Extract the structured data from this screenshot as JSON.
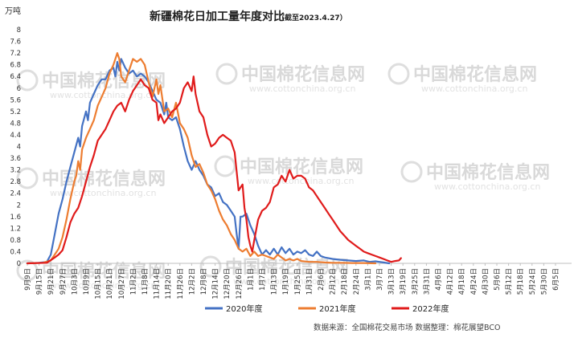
{
  "chart_data": {
    "type": "line",
    "title": "新疆棉花日加工量年度对比",
    "subtitle": "（截至2023.4.27）",
    "ylabel": "万吨",
    "ylim": [
      0,
      8
    ],
    "yticks": [
      "0",
      "0.4",
      "0.8",
      "1.2",
      "1.6",
      "2",
      "2.4",
      "2.8",
      "3.2",
      "3.6",
      "4",
      "4.4",
      "4.8",
      "5.2",
      "5.6",
      "6",
      "6.4",
      "6.8",
      "7.2",
      "7.6",
      "8"
    ],
    "x_tick_labels": [
      "9月9日",
      "9月15日",
      "9月21日",
      "9月27日",
      "10月3日",
      "10月9日",
      "10月15日",
      "10月21日",
      "10月27日",
      "11月2日",
      "11月8日",
      "11月14日",
      "11月20日",
      "11月26日",
      "12月2日",
      "12月8日",
      "12月14日",
      "12月20日",
      "12月26日",
      "1月1日",
      "1月7日",
      "1月13日",
      "1月19日",
      "1月25日",
      "1月31日",
      "2月6日",
      "2月12日",
      "2月18日",
      "2月24日",
      "3月1日",
      "3月7日",
      "3月13日",
      "3月19日",
      "3月25日",
      "3月31日",
      "4月6日",
      "4月12日",
      "4月18日",
      "4月24日",
      "4月30日",
      "5月6日",
      "5月12日",
      "5月18日",
      "5月24日",
      "5月30日",
      "6月5日"
    ],
    "x_start_label": "9月9日",
    "x_days_per_tick": 6,
    "grid": false,
    "legend_position": "bottom",
    "series": [
      {
        "name": "2020年度",
        "color": "#4472c4",
        "points": [
          [
            0,
            0
          ],
          [
            6,
            0.02
          ],
          [
            10,
            0.05
          ],
          [
            12,
            0.3
          ],
          [
            14,
            1.0
          ],
          [
            16,
            1.7
          ],
          [
            18,
            2.2
          ],
          [
            20,
            2.8
          ],
          [
            22,
            3.3
          ],
          [
            24,
            3.8
          ],
          [
            26,
            4.3
          ],
          [
            27,
            4.0
          ],
          [
            28,
            4.7
          ],
          [
            30,
            5.2
          ],
          [
            31,
            4.9
          ],
          [
            32,
            5.5
          ],
          [
            34,
            5.8
          ],
          [
            36,
            6.1
          ],
          [
            38,
            6.3
          ],
          [
            40,
            6.3
          ],
          [
            42,
            6.6
          ],
          [
            44,
            6.7
          ],
          [
            45,
            6.4
          ],
          [
            46,
            6.9
          ],
          [
            47,
            6.6
          ],
          [
            48,
            7.0
          ],
          [
            50,
            6.7
          ],
          [
            52,
            6.5
          ],
          [
            54,
            6.6
          ],
          [
            56,
            6.4
          ],
          [
            58,
            6.5
          ],
          [
            60,
            6.4
          ],
          [
            62,
            6.2
          ],
          [
            64,
            5.9
          ],
          [
            66,
            5.6
          ],
          [
            68,
            5.5
          ],
          [
            70,
            5.1
          ],
          [
            71,
            5.5
          ],
          [
            72,
            5.0
          ],
          [
            74,
            4.9
          ],
          [
            76,
            5.0
          ],
          [
            78,
            4.6
          ],
          [
            80,
            4.0
          ],
          [
            82,
            3.5
          ],
          [
            84,
            3.2
          ],
          [
            86,
            3.5
          ],
          [
            88,
            3.2
          ],
          [
            90,
            3.0
          ],
          [
            92,
            2.7
          ],
          [
            94,
            2.6
          ],
          [
            96,
            2.3
          ],
          [
            98,
            2.4
          ],
          [
            100,
            2.1
          ],
          [
            102,
            2.0
          ],
          [
            104,
            1.8
          ],
          [
            106,
            1.6
          ],
          [
            107,
            1.0
          ],
          [
            108,
            0.5
          ],
          [
            109,
            1.6
          ],
          [
            110,
            1.6
          ],
          [
            112,
            1.7
          ],
          [
            114,
            1.3
          ],
          [
            116,
            1.0
          ],
          [
            118,
            0.6
          ],
          [
            120,
            0.3
          ],
          [
            122,
            0.45
          ],
          [
            124,
            0.3
          ],
          [
            126,
            0.5
          ],
          [
            128,
            0.3
          ],
          [
            130,
            0.55
          ],
          [
            132,
            0.35
          ],
          [
            134,
            0.5
          ],
          [
            136,
            0.3
          ],
          [
            138,
            0.4
          ],
          [
            140,
            0.35
          ],
          [
            142,
            0.45
          ],
          [
            144,
            0.3
          ],
          [
            146,
            0.25
          ],
          [
            148,
            0.4
          ],
          [
            150,
            0.25
          ],
          [
            152,
            0.2
          ],
          [
            156,
            0.15
          ],
          [
            160,
            0.12
          ],
          [
            164,
            0.1
          ],
          [
            168,
            0.08
          ],
          [
            172,
            0.1
          ],
          [
            175,
            0.05
          ],
          [
            178,
            0.07
          ],
          [
            180,
            0.05
          ],
          [
            182,
            0.03
          ],
          [
            185,
            0.0
          ]
        ]
      },
      {
        "name": "2021年度",
        "color": "#ed7d31",
        "points": [
          [
            0,
            0
          ],
          [
            8,
            0.02
          ],
          [
            12,
            0.1
          ],
          [
            14,
            0.3
          ],
          [
            16,
            0.5
          ],
          [
            18,
            0.9
          ],
          [
            20,
            1.5
          ],
          [
            22,
            2.2
          ],
          [
            24,
            2.8
          ],
          [
            25,
            3.0
          ],
          [
            26,
            3.5
          ],
          [
            27,
            3.2
          ],
          [
            28,
            3.9
          ],
          [
            30,
            4.3
          ],
          [
            32,
            4.6
          ],
          [
            34,
            4.9
          ],
          [
            36,
            5.4
          ],
          [
            38,
            5.7
          ],
          [
            40,
            6.0
          ],
          [
            42,
            6.5
          ],
          [
            44,
            6.8
          ],
          [
            46,
            7.2
          ],
          [
            47,
            7.0
          ],
          [
            48,
            6.4
          ],
          [
            50,
            6.2
          ],
          [
            52,
            6.6
          ],
          [
            54,
            7.0
          ],
          [
            56,
            6.9
          ],
          [
            58,
            7.0
          ],
          [
            60,
            6.8
          ],
          [
            62,
            6.2
          ],
          [
            64,
            5.7
          ],
          [
            66,
            6.3
          ],
          [
            67,
            5.8
          ],
          [
            68,
            6.1
          ],
          [
            70,
            5.2
          ],
          [
            72,
            5.3
          ],
          [
            74,
            5.0
          ],
          [
            76,
            5.5
          ],
          [
            78,
            4.8
          ],
          [
            80,
            4.6
          ],
          [
            82,
            4.3
          ],
          [
            84,
            3.7
          ],
          [
            86,
            3.3
          ],
          [
            88,
            3.4
          ],
          [
            90,
            3.1
          ],
          [
            92,
            2.7
          ],
          [
            94,
            2.5
          ],
          [
            96,
            2.2
          ],
          [
            98,
            1.8
          ],
          [
            100,
            1.5
          ],
          [
            102,
            1.3
          ],
          [
            104,
            1.0
          ],
          [
            106,
            0.8
          ],
          [
            108,
            0.5
          ],
          [
            110,
            0.4
          ],
          [
            112,
            0.5
          ],
          [
            114,
            0.25
          ],
          [
            116,
            0.4
          ],
          [
            118,
            0.25
          ],
          [
            120,
            0.3
          ],
          [
            122,
            0.25
          ],
          [
            124,
            0.2
          ],
          [
            126,
            0.15
          ],
          [
            128,
            0.3
          ],
          [
            130,
            0.2
          ],
          [
            132,
            0.1
          ],
          [
            134,
            0.15
          ],
          [
            136,
            0.1
          ],
          [
            138,
            0.15
          ],
          [
            140,
            0.08
          ],
          [
            144,
            0.05
          ],
          [
            148,
            0.05
          ],
          [
            152,
            0.03
          ],
          [
            156,
            0.02
          ],
          [
            160,
            0.02
          ],
          [
            166,
            0.01
          ],
          [
            172,
            0.01
          ],
          [
            178,
            0.0
          ]
        ]
      },
      {
        "name": "2022年度",
        "color": "#e01b1b",
        "points": [
          [
            0,
            0
          ],
          [
            10,
            0.02
          ],
          [
            14,
            0.2
          ],
          [
            16,
            0.3
          ],
          [
            18,
            0.45
          ],
          [
            20,
            0.9
          ],
          [
            22,
            1.4
          ],
          [
            24,
            1.7
          ],
          [
            26,
            1.9
          ],
          [
            28,
            2.3
          ],
          [
            30,
            2.8
          ],
          [
            32,
            3.3
          ],
          [
            34,
            3.7
          ],
          [
            36,
            4.2
          ],
          [
            38,
            4.4
          ],
          [
            40,
            4.6
          ],
          [
            42,
            4.9
          ],
          [
            44,
            5.2
          ],
          [
            46,
            5.4
          ],
          [
            48,
            5.5
          ],
          [
            50,
            5.2
          ],
          [
            52,
            5.6
          ],
          [
            54,
            5.9
          ],
          [
            56,
            6.1
          ],
          [
            58,
            6.3
          ],
          [
            60,
            6.1
          ],
          [
            62,
            6.0
          ],
          [
            64,
            5.6
          ],
          [
            66,
            5.5
          ],
          [
            67,
            4.9
          ],
          [
            68,
            5.1
          ],
          [
            70,
            4.8
          ],
          [
            72,
            5.0
          ],
          [
            74,
            5.2
          ],
          [
            76,
            5.3
          ],
          [
            78,
            5.5
          ],
          [
            80,
            6.0
          ],
          [
            82,
            6.2
          ],
          [
            84,
            5.9
          ],
          [
            85,
            6.4
          ],
          [
            86,
            5.8
          ],
          [
            88,
            5.2
          ],
          [
            90,
            5.0
          ],
          [
            92,
            4.4
          ],
          [
            94,
            4.0
          ],
          [
            96,
            4.1
          ],
          [
            98,
            4.3
          ],
          [
            100,
            4.4
          ],
          [
            102,
            4.3
          ],
          [
            104,
            4.2
          ],
          [
            106,
            3.8
          ],
          [
            108,
            2.5
          ],
          [
            110,
            2.7
          ],
          [
            111,
            1.9
          ],
          [
            112,
            1.5
          ],
          [
            113,
            0.9
          ],
          [
            114,
            0.6
          ],
          [
            115,
            0.4
          ],
          [
            116,
            0.8
          ],
          [
            118,
            1.5
          ],
          [
            120,
            1.8
          ],
          [
            122,
            1.9
          ],
          [
            124,
            2.1
          ],
          [
            126,
            2.6
          ],
          [
            128,
            2.7
          ],
          [
            130,
            3.0
          ],
          [
            132,
            2.8
          ],
          [
            134,
            3.2
          ],
          [
            136,
            2.9
          ],
          [
            138,
            3.0
          ],
          [
            140,
            3.0
          ],
          [
            142,
            2.9
          ],
          [
            144,
            2.6
          ],
          [
            146,
            2.5
          ],
          [
            148,
            2.3
          ],
          [
            150,
            2.1
          ],
          [
            152,
            1.9
          ],
          [
            154,
            1.7
          ],
          [
            156,
            1.5
          ],
          [
            158,
            1.3
          ],
          [
            160,
            1.1
          ],
          [
            162,
            0.95
          ],
          [
            164,
            0.8
          ],
          [
            166,
            0.7
          ],
          [
            168,
            0.6
          ],
          [
            170,
            0.5
          ],
          [
            172,
            0.4
          ],
          [
            174,
            0.35
          ],
          [
            176,
            0.3
          ],
          [
            178,
            0.25
          ],
          [
            180,
            0.2
          ],
          [
            182,
            0.15
          ],
          [
            184,
            0.1
          ],
          [
            186,
            0.05
          ],
          [
            188,
            0.08
          ],
          [
            190,
            0.1
          ],
          [
            191,
            0.18
          ]
        ]
      }
    ],
    "source_note": "数据来源：全国棉花交易市场   数据整理：棉花展望BCO"
  },
  "watermark": {
    "text": "中国棉花信息网",
    "url": "www.cottonchina.org.cn"
  }
}
